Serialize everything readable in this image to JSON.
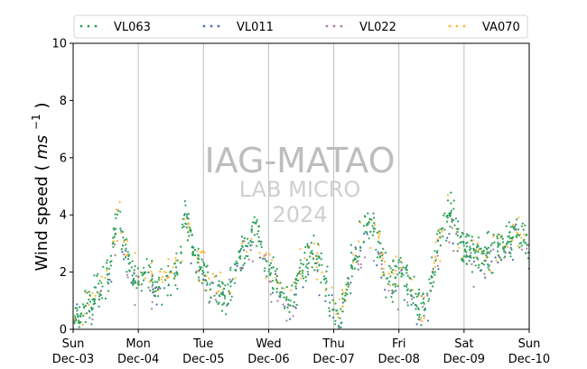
{
  "chart_data": {
    "type": "scatter",
    "ylabel": "Wind speed",
    "ylabel_unit_base": "ms",
    "ylabel_unit_exp": "−1",
    "ylim": [
      0,
      10
    ],
    "yticks": [
      "0",
      "2",
      "4",
      "6",
      "8",
      "10"
    ],
    "xlim_days": [
      0,
      7
    ],
    "xticks": [
      {
        "day": 0,
        "weekday": "Sun",
        "date": "Dec-03"
      },
      {
        "day": 1,
        "weekday": "Mon",
        "date": "Dec-04"
      },
      {
        "day": 2,
        "weekday": "Tue",
        "date": "Dec-05"
      },
      {
        "day": 3,
        "weekday": "Wed",
        "date": "Dec-06"
      },
      {
        "day": 4,
        "weekday": "Thu",
        "date": "Dec-07"
      },
      {
        "day": 5,
        "weekday": "Fri",
        "date": "Dec-08"
      },
      {
        "day": 6,
        "weekday": "Sat",
        "date": "Dec-09"
      },
      {
        "day": 7,
        "weekday": "Sun",
        "date": "Dec-10"
      }
    ],
    "grid": "vertical",
    "legend_position": "top",
    "series": [
      {
        "name": "VL063",
        "color": "#2ca05a",
        "offset": 0.0,
        "scale": 1.0
      },
      {
        "name": "VL011",
        "color": "#4a6fb0",
        "offset": -0.1,
        "scale": 0.9
      },
      {
        "name": "VL022",
        "color": "#b07aa8",
        "offset": -0.05,
        "scale": 0.85
      },
      {
        "name": "VA070",
        "color": "#ffb733",
        "offset": 0.3,
        "scale": 0.9
      }
    ],
    "profile": [
      [
        0.0,
        0.4
      ],
      [
        0.15,
        0.6
      ],
      [
        0.3,
        0.9
      ],
      [
        0.45,
        1.5
      ],
      [
        0.55,
        2.0
      ],
      [
        0.62,
        3.2
      ],
      [
        0.7,
        4.2
      ],
      [
        0.78,
        3.0
      ],
      [
        0.9,
        2.0
      ],
      [
        1.0,
        1.8
      ],
      [
        1.15,
        1.9
      ],
      [
        1.3,
        1.5
      ],
      [
        1.4,
        1.4
      ],
      [
        1.55,
        2.0
      ],
      [
        1.65,
        2.4
      ],
      [
        1.7,
        4.2
      ],
      [
        1.8,
        3.3
      ],
      [
        1.9,
        2.4
      ],
      [
        2.0,
        2.0
      ],
      [
        2.1,
        1.5
      ],
      [
        2.25,
        1.3
      ],
      [
        2.35,
        1.0
      ],
      [
        2.45,
        1.7
      ],
      [
        2.55,
        2.6
      ],
      [
        2.65,
        3.0
      ],
      [
        2.75,
        3.4
      ],
      [
        2.85,
        3.3
      ],
      [
        2.95,
        2.4
      ],
      [
        3.1,
        1.8
      ],
      [
        3.2,
        1.2
      ],
      [
        3.3,
        1.0
      ],
      [
        3.4,
        1.4
      ],
      [
        3.5,
        2.0
      ],
      [
        3.6,
        2.5
      ],
      [
        3.7,
        2.7
      ],
      [
        3.8,
        2.3
      ],
      [
        3.9,
        1.6
      ],
      [
        4.0,
        0.6
      ],
      [
        4.1,
        0.3
      ],
      [
        4.2,
        1.5
      ],
      [
        4.3,
        2.5
      ],
      [
        4.4,
        3.0
      ],
      [
        4.5,
        3.5
      ],
      [
        4.6,
        3.6
      ],
      [
        4.7,
        3.0
      ],
      [
        4.8,
        2.0
      ],
      [
        4.9,
        1.5
      ],
      [
        5.0,
        1.8
      ],
      [
        5.1,
        1.7
      ],
      [
        5.2,
        1.3
      ],
      [
        5.3,
        0.8
      ],
      [
        5.4,
        0.7
      ],
      [
        5.5,
        2.0
      ],
      [
        5.6,
        2.8
      ],
      [
        5.7,
        3.6
      ],
      [
        5.75,
        4.2
      ],
      [
        5.85,
        3.8
      ],
      [
        5.95,
        3.0
      ],
      [
        6.05,
        2.7
      ],
      [
        6.2,
        2.6
      ],
      [
        6.35,
        2.7
      ],
      [
        6.5,
        2.9
      ],
      [
        6.6,
        3.0
      ],
      [
        6.7,
        3.1
      ],
      [
        6.8,
        3.5
      ],
      [
        6.9,
        3.2
      ],
      [
        7.0,
        2.6
      ]
    ]
  },
  "watermark": {
    "line1": "IAG-MATAO",
    "line2": "LAB MICRO",
    "line3": "2024"
  }
}
